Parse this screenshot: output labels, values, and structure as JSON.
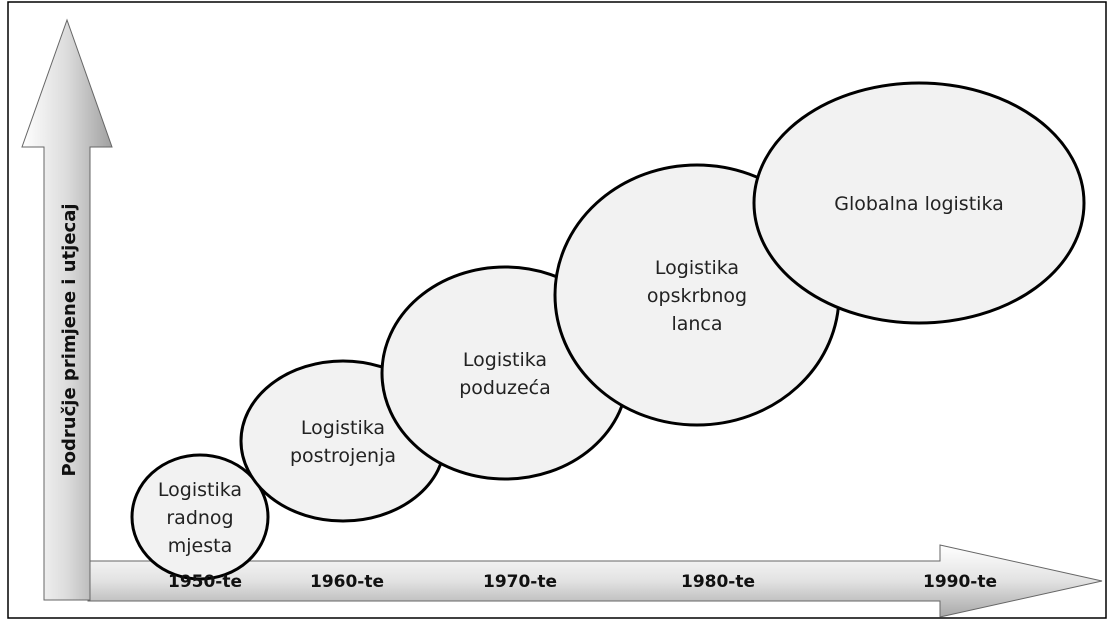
{
  "diagram": {
    "y_axis_label": "Područje primjene i utjecaj",
    "eras": [
      "1950-te",
      "1960-te",
      "1970-te",
      "1980-te",
      "1990-te"
    ],
    "stages": [
      {
        "lines": [
          "Logistika",
          "radnog",
          "mjesta"
        ]
      },
      {
        "lines": [
          "Logistika",
          "postrojenja"
        ]
      },
      {
        "lines": [
          "Logistika",
          "poduzeća"
        ]
      },
      {
        "lines": [
          "Logistika",
          "opskrbnog",
          "lanca"
        ]
      },
      {
        "lines": [
          "Globalna logistika"
        ]
      }
    ]
  }
}
